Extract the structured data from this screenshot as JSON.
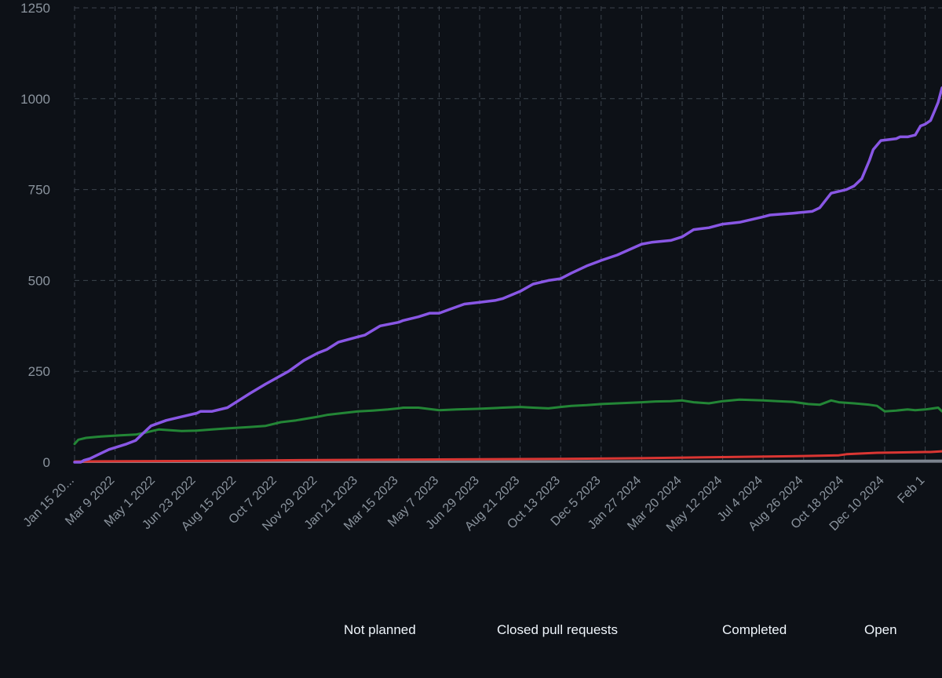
{
  "chart_data": {
    "type": "line",
    "y_ticks": [
      "0",
      "250",
      "500",
      "750",
      "1000",
      "1250"
    ],
    "ylim": [
      0,
      1250
    ],
    "x_tick_labels": [
      "Jan 15 20...",
      "Mar 9 2022",
      "May 1 2022",
      "Jun 23 2022",
      "Aug 15 2022",
      "Oct 7 2022",
      "Nov 29 2022",
      "Jan 21 2023",
      "Mar 15 2023",
      "May 7 2023",
      "Jun 29 2023",
      "Aug 21 2023",
      "Oct 13 2023",
      "Dec 5 2023",
      "Jan 27 2024",
      "Mar 20 2024",
      "May 12 2024",
      "Jul 4 2024",
      "Aug 26 2024",
      "Oct 18 2024",
      "Dec 10 2024",
      "Feb 1"
    ],
    "x_tick_positions": [
      0,
      53,
      106,
      159,
      212,
      265,
      318,
      371,
      424,
      477,
      530,
      583,
      636,
      689,
      742,
      795,
      848,
      901,
      954,
      1007,
      1060,
      1113
    ],
    "xlim": [
      0,
      1135
    ],
    "x_unit": "days since Jan 15 2022",
    "grid": true,
    "legend_position": "bottom",
    "series": [
      {
        "name": "Closed pull requests",
        "color": "#8957e5",
        "x": [
          0,
          8,
          12,
          20,
          45,
          68,
          80,
          90,
          100,
          120,
          140,
          160,
          165,
          180,
          200,
          230,
          250,
          280,
          300,
          318,
          330,
          345,
          371,
          380,
          400,
          424,
          430,
          450,
          465,
          477,
          490,
          510,
          530,
          550,
          560,
          583,
          600,
          620,
          636,
          650,
          670,
          689,
          710,
          742,
          755,
          780,
          795,
          810,
          830,
          848,
          870,
          901,
          910,
          940,
          965,
          975,
          990,
          1010,
          1020,
          1030,
          1040,
          1045,
          1055,
          1075,
          1080,
          1090,
          1100,
          1107,
          1113,
          1120,
          1125,
          1130,
          1135
        ],
        "y": [
          0,
          0,
          5,
          10,
          35,
          50,
          60,
          80,
          100,
          115,
          125,
          135,
          140,
          140,
          150,
          190,
          215,
          250,
          280,
          300,
          310,
          330,
          345,
          350,
          375,
          385,
          390,
          400,
          410,
          410,
          420,
          435,
          440,
          445,
          450,
          470,
          490,
          500,
          505,
          520,
          540,
          555,
          570,
          600,
          605,
          610,
          620,
          640,
          645,
          655,
          660,
          675,
          680,
          685,
          690,
          700,
          740,
          750,
          760,
          780,
          830,
          860,
          885,
          890,
          895,
          895,
          900,
          925,
          930,
          940,
          965,
          990,
          1030
        ]
      },
      {
        "name": "Completed",
        "color": "#238636",
        "x": [
          0,
          5,
          15,
          30,
          45,
          60,
          80,
          90,
          100,
          110,
          125,
          140,
          160,
          180,
          200,
          215,
          230,
          250,
          270,
          290,
          318,
          330,
          350,
          371,
          390,
          410,
          424,
          430,
          450,
          477,
          500,
          530,
          560,
          583,
          600,
          620,
          636,
          650,
          670,
          689,
          710,
          742,
          760,
          780,
          795,
          810,
          830,
          848,
          870,
          901,
          920,
          940,
          960,
          975,
          990,
          1000,
          1020,
          1030,
          1040,
          1050,
          1060,
          1075,
          1090,
          1100,
          1113,
          1120,
          1130,
          1135
        ],
        "y": [
          50,
          62,
          67,
          70,
          72,
          74,
          76,
          80,
          85,
          90,
          88,
          86,
          87,
          90,
          93,
          95,
          97,
          100,
          110,
          115,
          125,
          130,
          135,
          140,
          142,
          145,
          148,
          150,
          150,
          143,
          145,
          147,
          150,
          152,
          150,
          148,
          152,
          155,
          157,
          160,
          162,
          165,
          167,
          168,
          170,
          165,
          162,
          168,
          172,
          170,
          168,
          166,
          160,
          158,
          170,
          165,
          162,
          160,
          158,
          155,
          140,
          142,
          145,
          143,
          145,
          147,
          150,
          140
        ]
      },
      {
        "name": "Not planned",
        "color": "#da3633",
        "x": [
          0,
          100,
          212,
          318,
          424,
          530,
          636,
          742,
          848,
          954,
          1000,
          1010,
          1050,
          1113,
          1120,
          1135
        ],
        "y": [
          2,
          3,
          4,
          6,
          7,
          8,
          9,
          11,
          14,
          17,
          19,
          22,
          26,
          28,
          28,
          30
        ]
      },
      {
        "name": "Open",
        "color": "#7d8590",
        "x": [
          0,
          300,
          600,
          900,
          1135
        ],
        "y": [
          1,
          1,
          2,
          3,
          4
        ]
      }
    ]
  },
  "legend": {
    "not_planned": "Not planned",
    "closed_pull_requests": "Closed pull requests",
    "completed": "Completed",
    "open": "Open"
  }
}
